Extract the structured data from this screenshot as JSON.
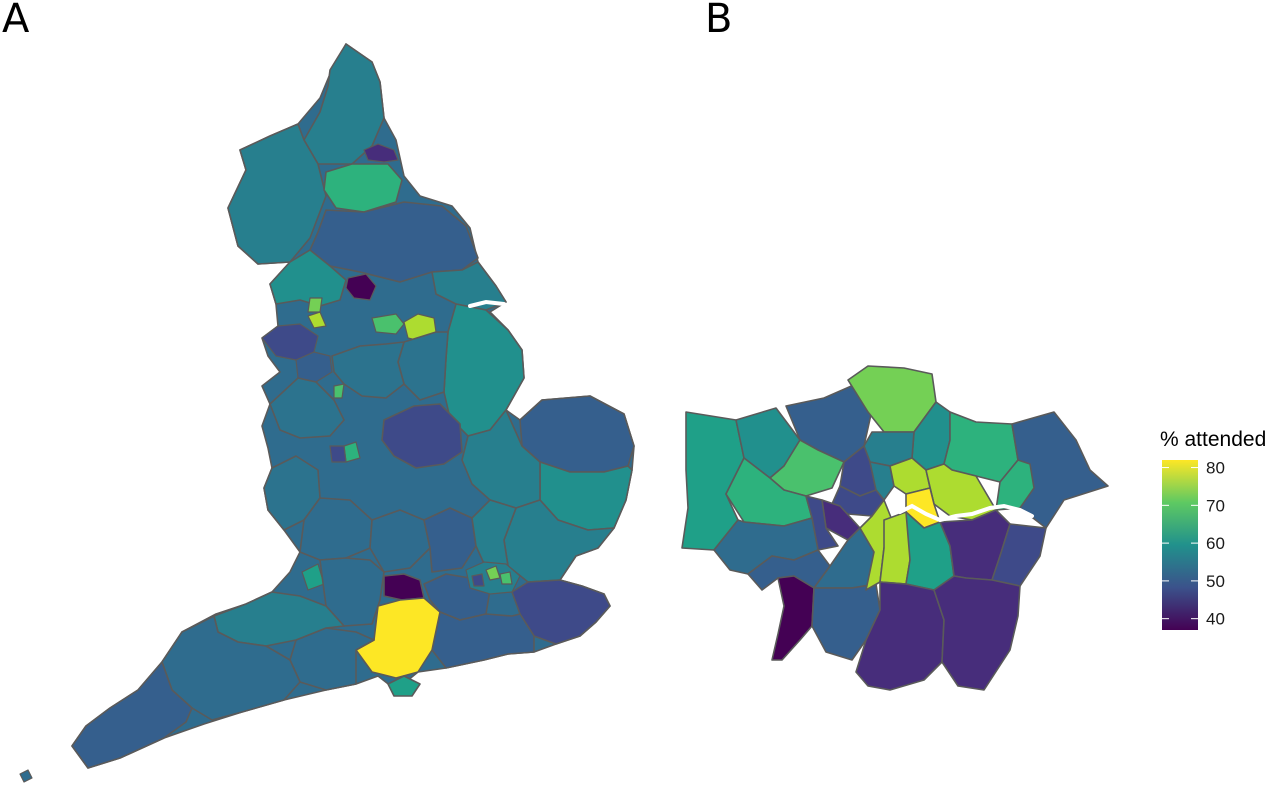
{
  "panels": {
    "a": {
      "letter": "A"
    },
    "b": {
      "letter": "B"
    }
  },
  "legend": {
    "title": "% attended",
    "ticks": [
      "80",
      "70",
      "60",
      "50",
      "40"
    ],
    "range": [
      37,
      82
    ],
    "colors": [
      "#440154",
      "#3b528b",
      "#21918c",
      "#5ec962",
      "#fde725"
    ]
  },
  "palette": {
    "v38": "#440154",
    "v42": "#472d7b",
    "v46": "#3e4a89",
    "v50": "#355f8d",
    "v53": "#2f6c8e",
    "v55": "#2c738e",
    "v57": "#277f8e",
    "v60": "#21908d",
    "v63": "#1fa088",
    "v66": "#2db27d",
    "v70": "#4ac16d",
    "v73": "#74d055",
    "v77": "#addc30",
    "v82": "#fde725"
  }
}
